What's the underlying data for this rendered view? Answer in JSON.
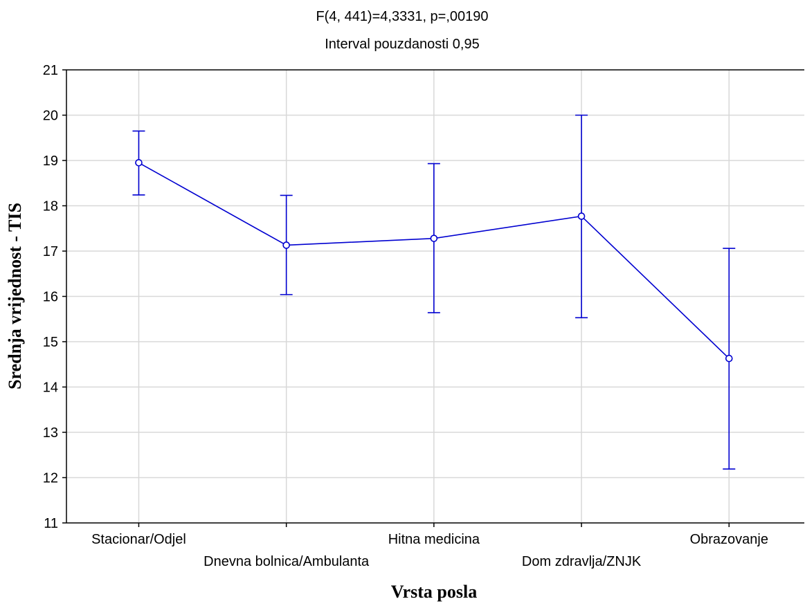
{
  "chart_data": {
    "type": "line",
    "title": "F(4, 441)=4,3331, p=,00190",
    "subtitle": "Interval pouzdanosti 0,95",
    "xlabel": "Vrsta posla",
    "ylabel": "Srednja vrijednost - TIS",
    "ylim": [
      11,
      21
    ],
    "yticks": [
      "11",
      "12",
      "13",
      "14",
      "15",
      "16",
      "17",
      "18",
      "19",
      "20",
      "21"
    ],
    "grid": true,
    "categories": [
      "Stacionar/Odjel",
      "Dnevna bolnica/Ambulanta",
      "Hitna medicina",
      "Dom zdravlja/ZNJK",
      "Obrazovanje"
    ],
    "series": [
      {
        "values": [
          18.95,
          17.13,
          17.28,
          17.77,
          14.63
        ],
        "lower": [
          18.24,
          16.04,
          15.64,
          15.53,
          12.19
        ],
        "upper": [
          19.65,
          18.23,
          18.93,
          20.0,
          17.06
        ]
      }
    ],
    "colors": {
      "series": "#0000d0",
      "grid": "#d8d8d8",
      "axis": "#000000"
    }
  }
}
